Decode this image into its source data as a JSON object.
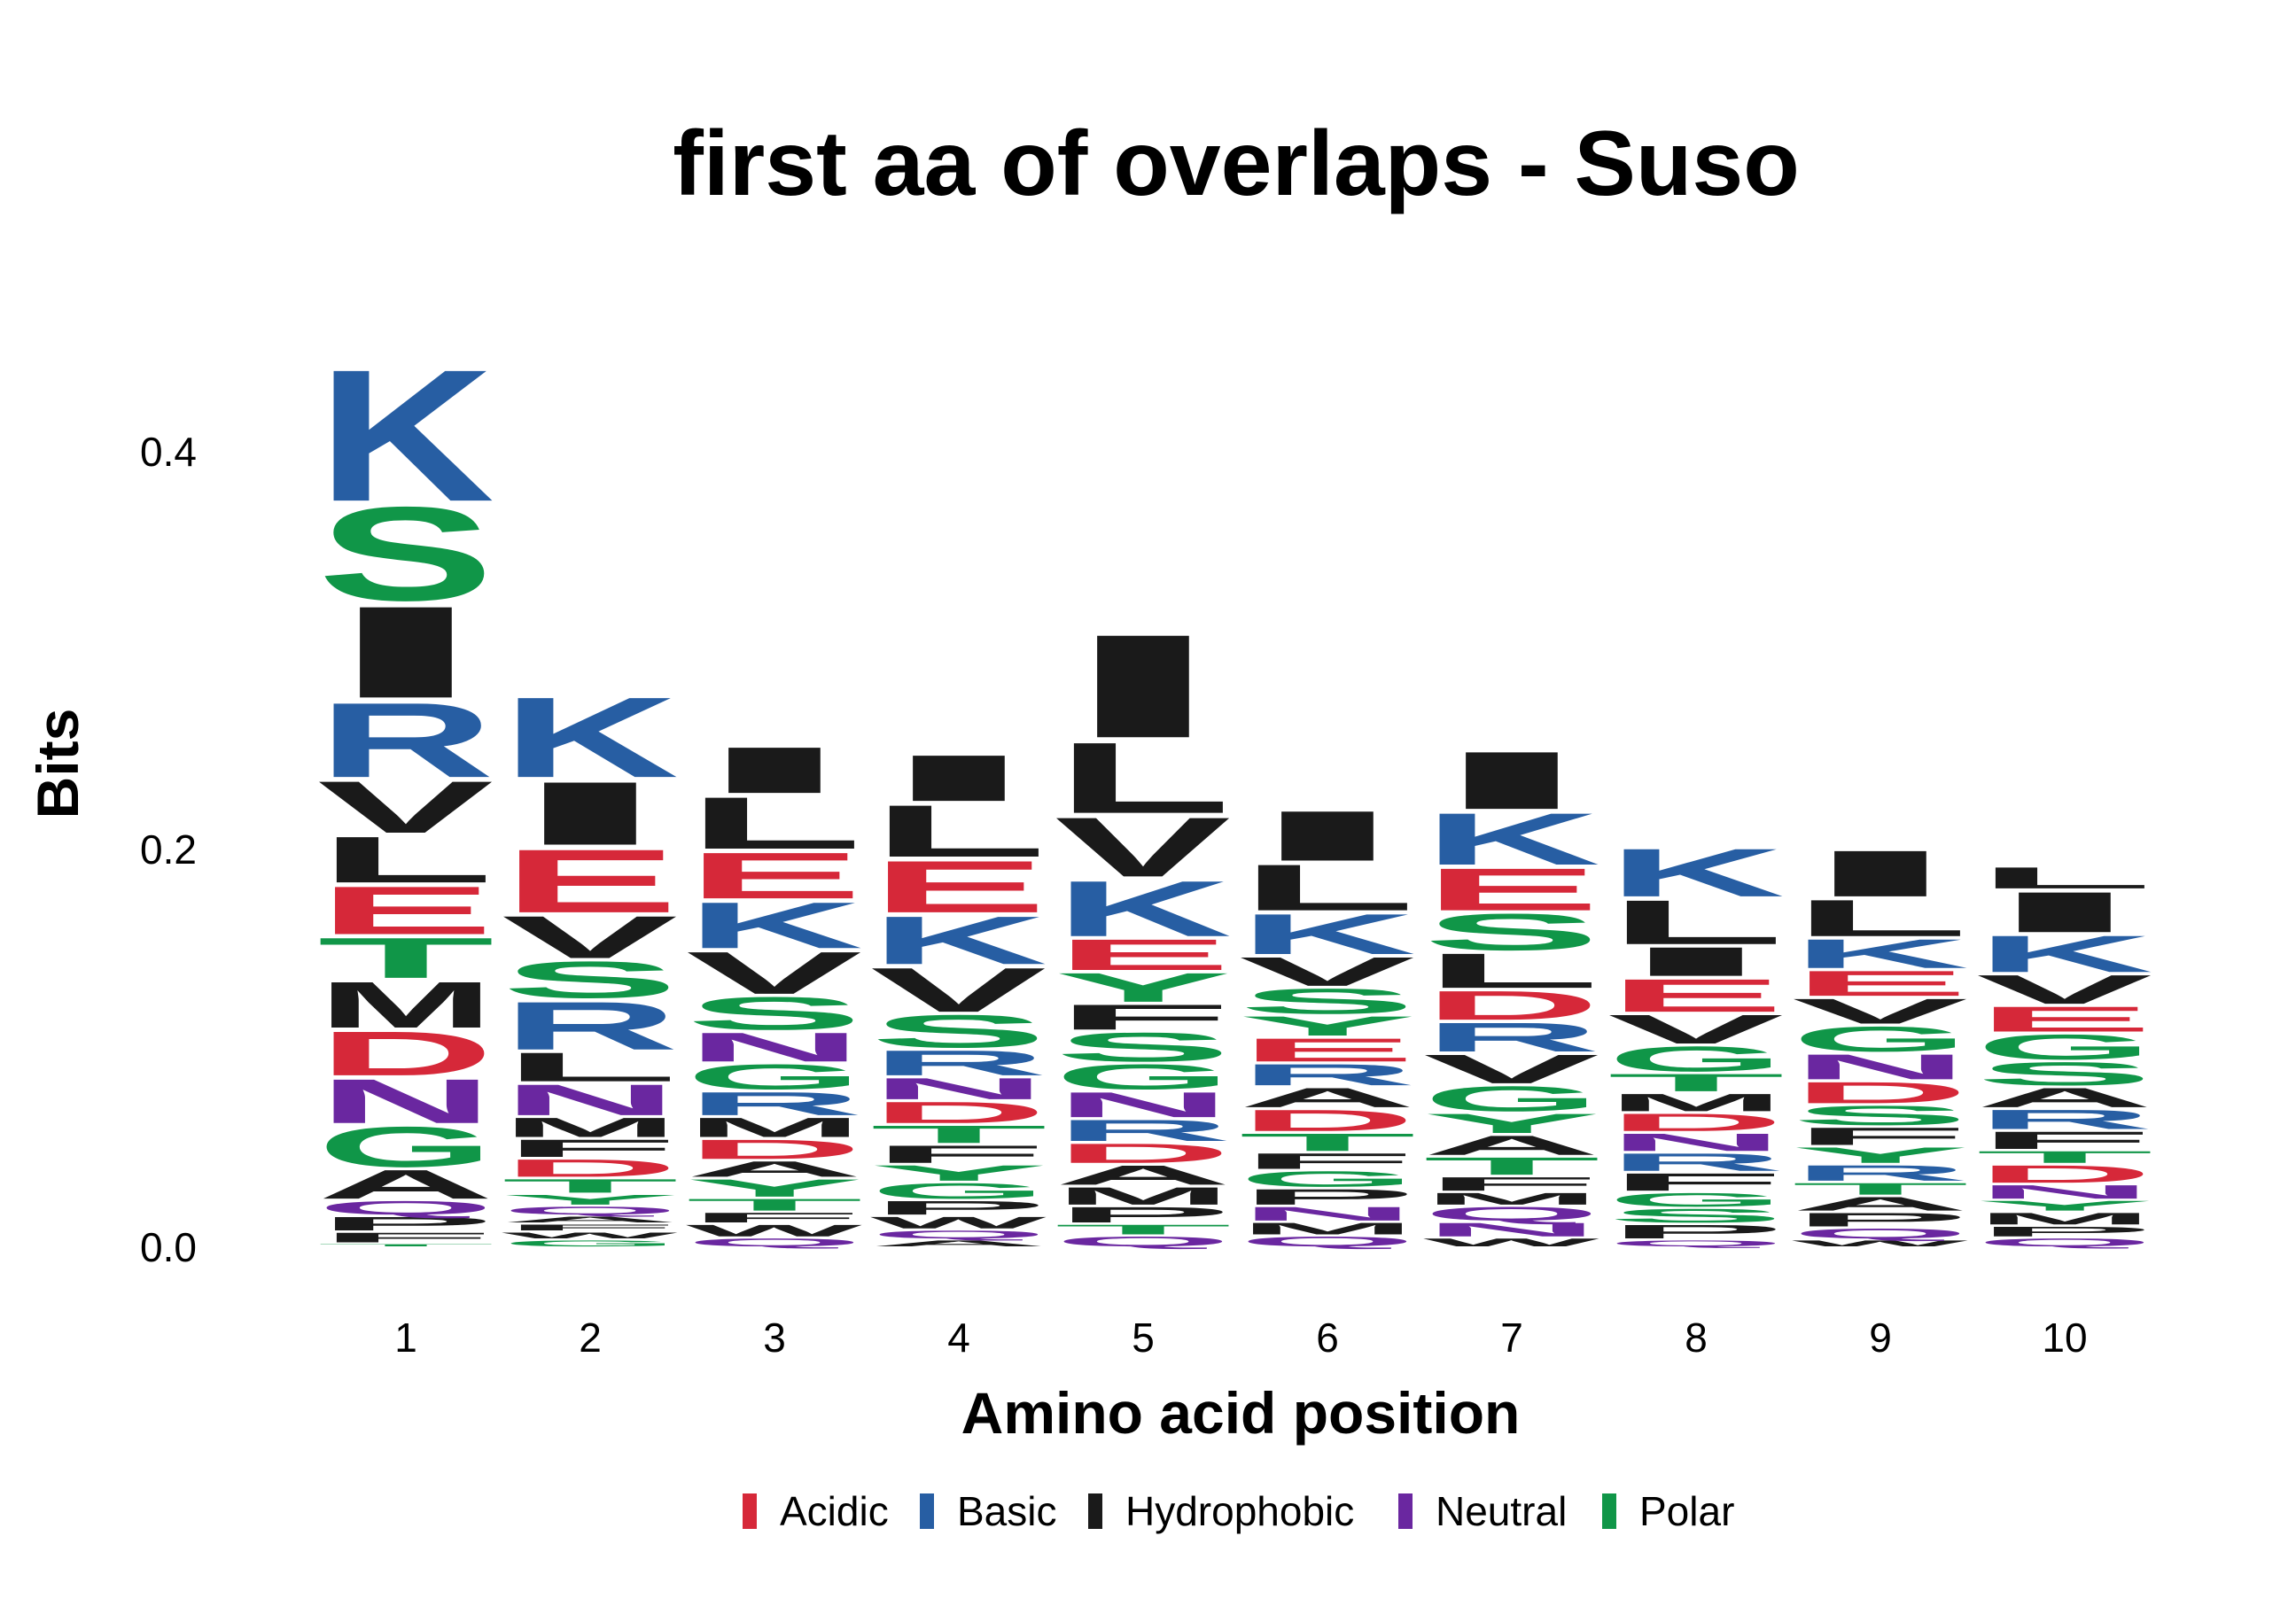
{
  "chart_data": {
    "type": "sequence-logo",
    "title": "first aa of overlaps - Suso",
    "xlabel": "Amino acid position",
    "ylabel": "Bits",
    "ylim": [
      0,
      0.48
    ],
    "yticks": [
      "0.0",
      "0.2",
      "0.4"
    ],
    "categories": [
      "1",
      "2",
      "3",
      "4",
      "5",
      "6",
      "7",
      "8",
      "9",
      "10"
    ],
    "colors": {
      "Acidic": "#D62839",
      "Basic": "#275EA3",
      "Hydrophobic": "#1A1A1A",
      "Neutral": "#6A27A0",
      "Polar": "#109648"
    },
    "residue_class": {
      "D": "Acidic",
      "E": "Acidic",
      "K": "Basic",
      "R": "Basic",
      "H": "Basic",
      "A": "Hydrophobic",
      "V": "Hydrophobic",
      "L": "Hydrophobic",
      "I": "Hydrophobic",
      "M": "Hydrophobic",
      "F": "Hydrophobic",
      "W": "Hydrophobic",
      "P": "Hydrophobic",
      "N": "Neutral",
      "Q": "Neutral",
      "S": "Polar",
      "T": "Polar",
      "G": "Polar",
      "Y": "Polar",
      "C": "Polar"
    },
    "legend": {
      "position": "bottom",
      "entries": [
        "Acidic",
        "Basic",
        "Hydrophobic",
        "Neutral",
        "Polar"
      ]
    },
    "positions": [
      {
        "position": "1",
        "stack": [
          {
            "aa": "T",
            "bits": 0.002
          },
          {
            "aa": "F",
            "bits": 0.006
          },
          {
            "aa": "P",
            "bits": 0.008
          },
          {
            "aa": "Q",
            "bits": 0.008
          },
          {
            "aa": "A",
            "bits": 0.016
          },
          {
            "aa": "G",
            "bits": 0.022
          },
          {
            "aa": "N",
            "bits": 0.024
          },
          {
            "aa": "D",
            "bits": 0.024
          },
          {
            "aa": "M",
            "bits": 0.025
          },
          {
            "aa": "T",
            "bits": 0.022
          },
          {
            "aa": "E",
            "bits": 0.026
          },
          {
            "aa": "L",
            "bits": 0.025
          },
          {
            "aa": "V",
            "bits": 0.028
          },
          {
            "aa": "R",
            "bits": 0.04
          },
          {
            "aa": "I",
            "bits": 0.049
          },
          {
            "aa": "S",
            "bits": 0.05
          },
          {
            "aa": "K",
            "bits": 0.07
          }
        ]
      },
      {
        "position": "2",
        "stack": [
          {
            "aa": "G",
            "bits": 0.004
          },
          {
            "aa": "W",
            "bits": 0.004
          },
          {
            "aa": "F",
            "bits": 0.004
          },
          {
            "aa": "A",
            "bits": 0.004
          },
          {
            "aa": "Q",
            "bits": 0.005
          },
          {
            "aa": "Y",
            "bits": 0.006
          },
          {
            "aa": "T",
            "bits": 0.008
          },
          {
            "aa": "D",
            "bits": 0.01
          },
          {
            "aa": "F",
            "bits": 0.01
          },
          {
            "aa": "M",
            "bits": 0.011
          },
          {
            "aa": "N",
            "bits": 0.017
          },
          {
            "aa": "L",
            "bits": 0.016
          },
          {
            "aa": "R",
            "bits": 0.026
          },
          {
            "aa": "S",
            "bits": 0.02
          },
          {
            "aa": "V",
            "bits": 0.023
          },
          {
            "aa": "E",
            "bits": 0.034
          },
          {
            "aa": "I",
            "bits": 0.034
          },
          {
            "aa": "K",
            "bits": 0.043
          }
        ]
      },
      {
        "position": "3",
        "stack": [
          {
            "aa": "Q",
            "bits": 0.005
          },
          {
            "aa": "W",
            "bits": 0.007
          },
          {
            "aa": "F",
            "bits": 0.006
          },
          {
            "aa": "T",
            "bits": 0.007
          },
          {
            "aa": "Y",
            "bits": 0.01
          },
          {
            "aa": "A",
            "bits": 0.009
          },
          {
            "aa": "D",
            "bits": 0.011
          },
          {
            "aa": "M",
            "bits": 0.011
          },
          {
            "aa": "R",
            "bits": 0.013
          },
          {
            "aa": "G",
            "bits": 0.014
          },
          {
            "aa": "N",
            "bits": 0.016
          },
          {
            "aa": "S",
            "bits": 0.018
          },
          {
            "aa": "V",
            "bits": 0.023
          },
          {
            "aa": "K",
            "bits": 0.025
          },
          {
            "aa": "E",
            "bits": 0.025
          },
          {
            "aa": "L",
            "bits": 0.028
          },
          {
            "aa": "I",
            "bits": 0.025
          }
        ]
      },
      {
        "position": "4",
        "stack": [
          {
            "aa": "A",
            "bits": 0.004
          },
          {
            "aa": "Q",
            "bits": 0.005
          },
          {
            "aa": "W",
            "bits": 0.007
          },
          {
            "aa": "P",
            "bits": 0.008
          },
          {
            "aa": "G",
            "bits": 0.009
          },
          {
            "aa": "Y",
            "bits": 0.009
          },
          {
            "aa": "F",
            "bits": 0.01
          },
          {
            "aa": "T",
            "bits": 0.01
          },
          {
            "aa": "D",
            "bits": 0.012
          },
          {
            "aa": "N",
            "bits": 0.012
          },
          {
            "aa": "R",
            "bits": 0.014
          },
          {
            "aa": "S",
            "bits": 0.018
          },
          {
            "aa": "V",
            "bits": 0.024
          },
          {
            "aa": "K",
            "bits": 0.026
          },
          {
            "aa": "E",
            "bits": 0.028
          },
          {
            "aa": "L",
            "bits": 0.028
          },
          {
            "aa": "I",
            "bits": 0.025
          }
        ]
      },
      {
        "position": "5",
        "stack": [
          {
            "aa": "Q",
            "bits": 0.006
          },
          {
            "aa": "T",
            "bits": 0.006
          },
          {
            "aa": "P",
            "bits": 0.009
          },
          {
            "aa": "M",
            "bits": 0.01
          },
          {
            "aa": "A",
            "bits": 0.011
          },
          {
            "aa": "D",
            "bits": 0.011
          },
          {
            "aa": "R",
            "bits": 0.012
          },
          {
            "aa": "N",
            "bits": 0.014
          },
          {
            "aa": "G",
            "bits": 0.014
          },
          {
            "aa": "S",
            "bits": 0.016
          },
          {
            "aa": "F",
            "bits": 0.014
          },
          {
            "aa": "Y",
            "bits": 0.016
          },
          {
            "aa": "E",
            "bits": 0.017
          },
          {
            "aa": "K",
            "bits": 0.03
          },
          {
            "aa": "V",
            "bits": 0.032
          },
          {
            "aa": "L",
            "bits": 0.038
          },
          {
            "aa": "I",
            "bits": 0.055
          }
        ]
      },
      {
        "position": "6",
        "stack": [
          {
            "aa": "Q",
            "bits": 0.006
          },
          {
            "aa": "M",
            "bits": 0.007
          },
          {
            "aa": "N",
            "bits": 0.008
          },
          {
            "aa": "P",
            "bits": 0.009
          },
          {
            "aa": "G",
            "bits": 0.009
          },
          {
            "aa": "F",
            "bits": 0.009
          },
          {
            "aa": "T",
            "bits": 0.01
          },
          {
            "aa": "D",
            "bits": 0.012
          },
          {
            "aa": "A",
            "bits": 0.011
          },
          {
            "aa": "R",
            "bits": 0.012
          },
          {
            "aa": "E",
            "bits": 0.013
          },
          {
            "aa": "Y",
            "bits": 0.011
          },
          {
            "aa": "S",
            "bits": 0.014
          },
          {
            "aa": "V",
            "bits": 0.016
          },
          {
            "aa": "K",
            "bits": 0.022
          },
          {
            "aa": "L",
            "bits": 0.025
          },
          {
            "aa": "I",
            "bits": 0.027
          }
        ]
      },
      {
        "position": "7",
        "stack": [
          {
            "aa": "W",
            "bits": 0.005
          },
          {
            "aa": "N",
            "bits": 0.008
          },
          {
            "aa": "Q",
            "bits": 0.008
          },
          {
            "aa": "M",
            "bits": 0.007
          },
          {
            "aa": "F",
            "bits": 0.008
          },
          {
            "aa": "T",
            "bits": 0.01
          },
          {
            "aa": "A",
            "bits": 0.011
          },
          {
            "aa": "Y",
            "bits": 0.011
          },
          {
            "aa": "G",
            "bits": 0.014
          },
          {
            "aa": "V",
            "bits": 0.016
          },
          {
            "aa": "R",
            "bits": 0.016
          },
          {
            "aa": "D",
            "bits": 0.016
          },
          {
            "aa": "L",
            "bits": 0.019
          },
          {
            "aa": "S",
            "bits": 0.02
          },
          {
            "aa": "E",
            "bits": 0.023
          },
          {
            "aa": "K",
            "bits": 0.028
          },
          {
            "aa": "I",
            "bits": 0.031
          }
        ]
      },
      {
        "position": "8",
        "stack": [
          {
            "aa": "Q",
            "bits": 0.004
          },
          {
            "aa": "P",
            "bits": 0.008
          },
          {
            "aa": "S",
            "bits": 0.008
          },
          {
            "aa": "G",
            "bits": 0.008
          },
          {
            "aa": "F",
            "bits": 0.01
          },
          {
            "aa": "R",
            "bits": 0.01
          },
          {
            "aa": "N",
            "bits": 0.01
          },
          {
            "aa": "D",
            "bits": 0.01
          },
          {
            "aa": "M",
            "bits": 0.01
          },
          {
            "aa": "T",
            "bits": 0.01
          },
          {
            "aa": "G",
            "bits": 0.014
          },
          {
            "aa": "V",
            "bits": 0.016
          },
          {
            "aa": "E",
            "bits": 0.018
          },
          {
            "aa": "I",
            "bits": 0.016
          },
          {
            "aa": "L",
            "bits": 0.024
          },
          {
            "aa": "K",
            "bits": 0.026
          }
        ]
      },
      {
        "position": "9",
        "stack": [
          {
            "aa": "W",
            "bits": 0.004
          },
          {
            "aa": "Q",
            "bits": 0.006
          },
          {
            "aa": "P",
            "bits": 0.008
          },
          {
            "aa": "A",
            "bits": 0.008
          },
          {
            "aa": "T",
            "bits": 0.007
          },
          {
            "aa": "R",
            "bits": 0.009
          },
          {
            "aa": "Y",
            "bits": 0.009
          },
          {
            "aa": "F",
            "bits": 0.01
          },
          {
            "aa": "S",
            "bits": 0.011
          },
          {
            "aa": "D",
            "bits": 0.012
          },
          {
            "aa": "N",
            "bits": 0.014
          },
          {
            "aa": "G",
            "bits": 0.014
          },
          {
            "aa": "V",
            "bits": 0.014
          },
          {
            "aa": "E",
            "bits": 0.014
          },
          {
            "aa": "K",
            "bits": 0.016
          },
          {
            "aa": "L",
            "bits": 0.02
          },
          {
            "aa": "I",
            "bits": 0.025
          }
        ]
      },
      {
        "position": "10",
        "stack": [
          {
            "aa": "Q",
            "bits": 0.005
          },
          {
            "aa": "P",
            "bits": 0.006
          },
          {
            "aa": "M",
            "bits": 0.007
          },
          {
            "aa": "Y",
            "bits": 0.006
          },
          {
            "aa": "N",
            "bits": 0.008
          },
          {
            "aa": "D",
            "bits": 0.01
          },
          {
            "aa": "T",
            "bits": 0.007
          },
          {
            "aa": "F",
            "bits": 0.01
          },
          {
            "aa": "R",
            "bits": 0.011
          },
          {
            "aa": "A",
            "bits": 0.011
          },
          {
            "aa": "S",
            "bits": 0.013
          },
          {
            "aa": "G",
            "bits": 0.014
          },
          {
            "aa": "E",
            "bits": 0.014
          },
          {
            "aa": "V",
            "bits": 0.016
          },
          {
            "aa": "K",
            "bits": 0.02
          },
          {
            "aa": "I",
            "bits": 0.022
          },
          {
            "aa": "L",
            "bits": 0.012
          }
        ]
      }
    ]
  }
}
